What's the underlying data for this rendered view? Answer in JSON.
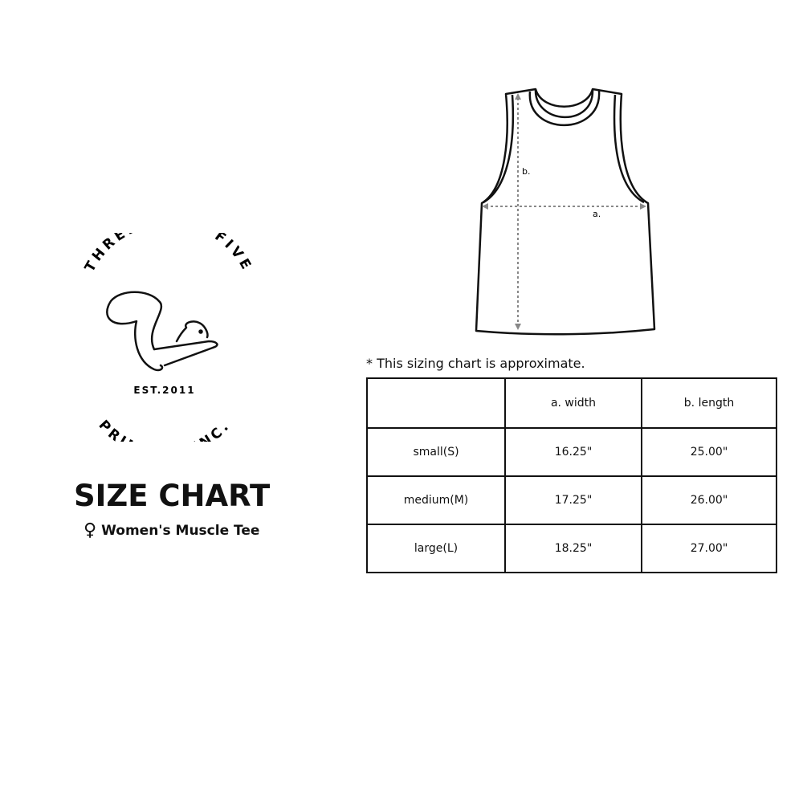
{
  "logo": {
    "arc_top": "THREE SIXTY FIVE",
    "established": "EST.2011",
    "arc_bottom": "PRINTING INC."
  },
  "title": "SIZE CHART",
  "subtitle": {
    "icon": "female-symbol-icon",
    "symbol": "♀",
    "text": "Women's Muscle Tee"
  },
  "diagram": {
    "label_a": "a.",
    "label_b": "b."
  },
  "note": "* This sizing chart is approximate.",
  "table": {
    "headers": [
      "",
      "a. width",
      "b. length"
    ],
    "rows": [
      [
        "small(S)",
        "16.25\"",
        "25.00\""
      ],
      [
        "medium(M)",
        "17.25\"",
        "26.00\""
      ],
      [
        "large(L)",
        "18.25\"",
        "27.00\""
      ]
    ]
  }
}
